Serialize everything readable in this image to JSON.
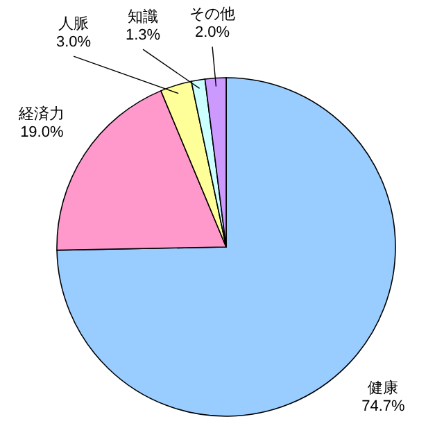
{
  "chart_data": {
    "type": "pie",
    "categories": [
      "健康",
      "経済力",
      "人脈",
      "知識",
      "その他"
    ],
    "values": [
      74.7,
      19.0,
      3.0,
      1.3,
      2.0
    ],
    "colors": [
      "#99ccff",
      "#ff99cc",
      "#ffff99",
      "#ccffff",
      "#cc99ff"
    ],
    "value_labels": [
      "74.7%",
      "19.0%",
      "3.0%",
      "1.3%",
      "2.0%"
    ]
  }
}
